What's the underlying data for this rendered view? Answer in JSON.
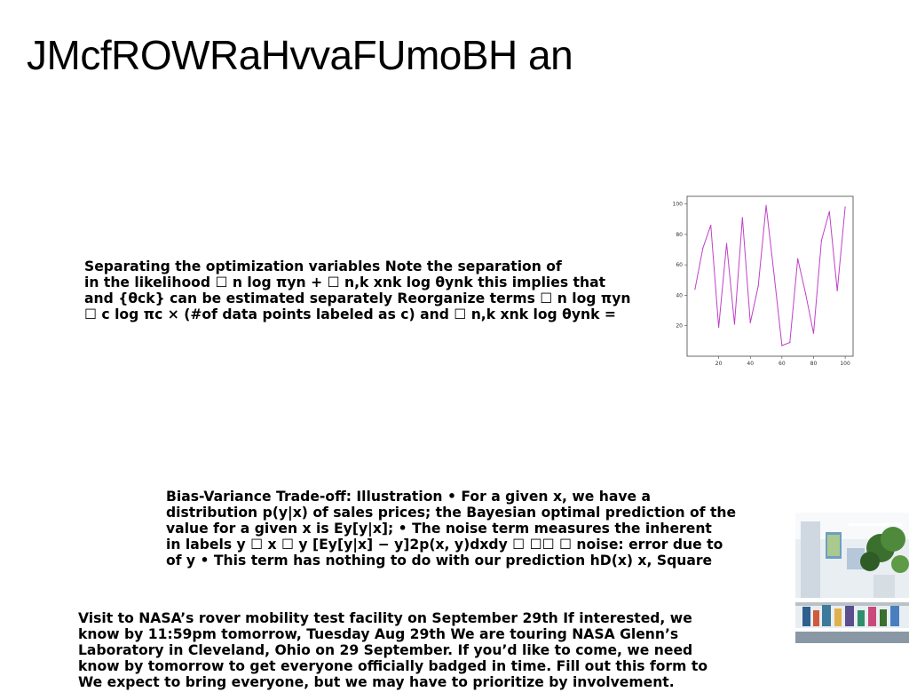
{
  "slide": {
    "title": "JMcfROWRaHvvaFUmoBH an",
    "paragraphs": [
      {
        "lines": [
          "Separating the optimization variables Note the separation of",
          "in the likelihood ☐ n log πyn + ☐ n,k xnk log θynk this implies that",
          "and {θck} can be estimated separately Reorganize terms ☐ n log πyn",
          "☐ c log πc × (#of data points labeled as c) and ☐ n,k xnk log θynk ="
        ]
      },
      {
        "lines": [
          "Bias-Variance Trade-off: Illustration • For a given x, we have a",
          "distribution p(y|x) of sales prices; the Bayesian optimal prediction of the",
          "value for a given x is Ey[y|x]; • The noise term measures the inherent",
          "in labels y ☐ x ☐ y [Ey[y|x] − y]2p(x, y)dxdy ☐ ☐☐ ☐ noise: error due to",
          "of y • This term has nothing to do with our prediction hD(x) x, Square"
        ]
      },
      {
        "lines": [
          "Visit to NASA’s rover mobility test facility on September 29th If interested, we",
          "know by 11:59pm tomorrow, Tuesday Aug 29th We are touring NASA Glenn’s",
          "Laboratory in Cleveland, Ohio on 29 September. If you’d like to come, we need",
          "know by tomorrow to get everyone officially badged in time. Fill out this form to",
          "We expect to bring everyone, but we may have to prioritize by involvement."
        ]
      }
    ],
    "photo": {
      "icon": "storefront-photo",
      "colors": [
        "#e9eef2",
        "#3a6f2e",
        "#2f5f8f",
        "#c7cdd3"
      ]
    }
  },
  "chart_data": {
    "type": "line",
    "color": "#c040c8",
    "x": [
      5,
      10,
      15,
      20,
      25,
      30,
      35,
      40,
      45,
      50,
      55,
      60,
      65,
      70,
      75,
      80,
      85,
      90,
      95,
      100
    ],
    "y": [
      44,
      71,
      86,
      19,
      74,
      21,
      91,
      22,
      46,
      99,
      54,
      7,
      9,
      64,
      41,
      15,
      76,
      95,
      43,
      98
    ],
    "xticks": [
      20,
      40,
      60,
      80,
      100
    ],
    "yticks": [
      20,
      40,
      60,
      80,
      100
    ],
    "xlim": [
      0,
      105
    ],
    "ylim": [
      0,
      105
    ],
    "grid": false,
    "title": "",
    "xlabel": "",
    "ylabel": ""
  }
}
